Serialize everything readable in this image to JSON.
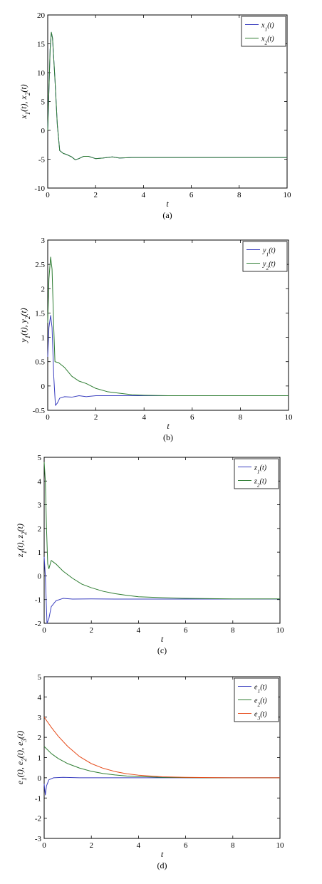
{
  "chart_data": [
    {
      "type": "line",
      "caption": "(a)",
      "xlabel": "t",
      "ylabel": "x1(t), x2(t)",
      "xlim": [
        0,
        10
      ],
      "ylim": [
        -10,
        20
      ],
      "xticks": [
        "0",
        "2",
        "4",
        "6",
        "8",
        "10"
      ],
      "yticks": [
        "-10",
        "-5",
        "0",
        "5",
        "10",
        "15",
        "20"
      ],
      "legend_position": "top-right",
      "series": [
        {
          "name": "x1(t)",
          "name_main": "x",
          "name_sub": "1",
          "name_tail": "(t)",
          "color": "#3a3fbf",
          "points": [
            [
              0,
              0
            ],
            [
              0.05,
              7
            ],
            [
              0.1,
              14
            ],
            [
              0.15,
              17
            ],
            [
              0.2,
              16
            ],
            [
              0.3,
              9
            ],
            [
              0.4,
              1
            ],
            [
              0.5,
              -3.5
            ],
            [
              0.65,
              -4
            ],
            [
              0.8,
              -4.2
            ],
            [
              1.0,
              -4.6
            ],
            [
              1.15,
              -5.1
            ],
            [
              1.3,
              -4.9
            ],
            [
              1.5,
              -4.5
            ],
            [
              1.7,
              -4.5
            ],
            [
              2.0,
              -4.9
            ],
            [
              2.3,
              -4.8
            ],
            [
              2.7,
              -4.6
            ],
            [
              3.0,
              -4.8
            ],
            [
              3.5,
              -4.7
            ],
            [
              4,
              -4.7
            ],
            [
              5,
              -4.7
            ],
            [
              6,
              -4.7
            ],
            [
              7,
              -4.7
            ],
            [
              8,
              -4.7
            ],
            [
              9,
              -4.7
            ],
            [
              10,
              -4.7
            ]
          ]
        },
        {
          "name": "x2(t)",
          "name_main": "x",
          "name_sub": "2",
          "name_tail": "(t)",
          "color": "#2e7d32",
          "points": [
            [
              0,
              0
            ],
            [
              0.05,
              7
            ],
            [
              0.1,
              14
            ],
            [
              0.15,
              17
            ],
            [
              0.2,
              16
            ],
            [
              0.3,
              9
            ],
            [
              0.4,
              1
            ],
            [
              0.5,
              -3.5
            ],
            [
              0.65,
              -4
            ],
            [
              0.8,
              -4.2
            ],
            [
              1.0,
              -4.6
            ],
            [
              1.15,
              -5.1
            ],
            [
              1.3,
              -4.9
            ],
            [
              1.5,
              -4.5
            ],
            [
              1.7,
              -4.5
            ],
            [
              2.0,
              -4.9
            ],
            [
              2.3,
              -4.8
            ],
            [
              2.7,
              -4.6
            ],
            [
              3.0,
              -4.8
            ],
            [
              3.5,
              -4.7
            ],
            [
              4,
              -4.7
            ],
            [
              5,
              -4.7
            ],
            [
              6,
              -4.7
            ],
            [
              7,
              -4.7
            ],
            [
              8,
              -4.7
            ],
            [
              9,
              -4.7
            ],
            [
              10,
              -4.7
            ]
          ]
        }
      ]
    },
    {
      "type": "line",
      "caption": "(b)",
      "xlabel": "t",
      "ylabel": "y1(t), y2(t)",
      "xlim": [
        0,
        10
      ],
      "ylim": [
        -0.5,
        3
      ],
      "xticks": [
        "0",
        "2",
        "4",
        "6",
        "8",
        "10"
      ],
      "yticks": [
        "-0.5",
        "0",
        "0.5",
        "1",
        "1.5",
        "2",
        "2.5",
        "3"
      ],
      "legend_position": "top-right",
      "series": [
        {
          "name": "y1(t)",
          "name_main": "y",
          "name_sub": "1",
          "name_tail": "(t)",
          "color": "#3a3fbf",
          "points": [
            [
              0,
              0.6
            ],
            [
              0.05,
              1.2
            ],
            [
              0.12,
              1.45
            ],
            [
              0.18,
              1.2
            ],
            [
              0.25,
              0.2
            ],
            [
              0.32,
              -0.4
            ],
            [
              0.4,
              -0.35
            ],
            [
              0.5,
              -0.25
            ],
            [
              0.7,
              -0.22
            ],
            [
              1.0,
              -0.23
            ],
            [
              1.3,
              -0.2
            ],
            [
              1.6,
              -0.22
            ],
            [
              2.0,
              -0.2
            ],
            [
              3,
              -0.2
            ],
            [
              4,
              -0.2
            ],
            [
              5,
              -0.2
            ],
            [
              6,
              -0.2
            ],
            [
              7,
              -0.2
            ],
            [
              8,
              -0.2
            ],
            [
              9,
              -0.2
            ],
            [
              10,
              -0.2
            ]
          ]
        },
        {
          "name": "y2(t)",
          "name_main": "y",
          "name_sub": "2",
          "name_tail": "(t)",
          "color": "#2e7d32",
          "points": [
            [
              0,
              1.3
            ],
            [
              0.05,
              2.2
            ],
            [
              0.12,
              2.65
            ],
            [
              0.18,
              2.4
            ],
            [
              0.25,
              1.2
            ],
            [
              0.3,
              0.5
            ],
            [
              0.45,
              0.48
            ],
            [
              0.7,
              0.38
            ],
            [
              1.0,
              0.2
            ],
            [
              1.3,
              0.1
            ],
            [
              1.6,
              0.05
            ],
            [
              2.0,
              -0.05
            ],
            [
              2.5,
              -0.12
            ],
            [
              3.0,
              -0.15
            ],
            [
              3.5,
              -0.18
            ],
            [
              4,
              -0.19
            ],
            [
              5,
              -0.2
            ],
            [
              6,
              -0.2
            ],
            [
              7,
              -0.2
            ],
            [
              8,
              -0.2
            ],
            [
              9,
              -0.2
            ],
            [
              10,
              -0.2
            ]
          ]
        }
      ]
    },
    {
      "type": "line",
      "caption": "(c)",
      "xlabel": "t",
      "ylabel": "z1(t), z2(t)",
      "xlim": [
        0,
        10
      ],
      "ylim": [
        -2,
        5
      ],
      "xticks": [
        "0",
        "2",
        "4",
        "6",
        "8",
        "10"
      ],
      "yticks": [
        "-2",
        "-1",
        "0",
        "1",
        "2",
        "3",
        "4",
        "5"
      ],
      "legend_position": "top-right",
      "series": [
        {
          "name": "z1(t)",
          "name_main": "z",
          "name_sub": "1",
          "name_tail": "(t)",
          "color": "#3a3fbf",
          "points": [
            [
              0,
              0.8
            ],
            [
              0.05,
              0
            ],
            [
              0.12,
              -2
            ],
            [
              0.2,
              -1.8
            ],
            [
              0.3,
              -1.3
            ],
            [
              0.5,
              -1.05
            ],
            [
              0.8,
              -0.95
            ],
            [
              1.2,
              -0.98
            ],
            [
              2,
              -0.97
            ],
            [
              3,
              -0.98
            ],
            [
              4,
              -0.98
            ],
            [
              5,
              -0.98
            ],
            [
              6,
              -0.98
            ],
            [
              7,
              -0.98
            ],
            [
              8,
              -0.98
            ],
            [
              9,
              -0.98
            ],
            [
              10,
              -0.98
            ]
          ]
        },
        {
          "name": "z2(t)",
          "name_main": "z",
          "name_sub": "2",
          "name_tail": "(t)",
          "color": "#2e7d32",
          "points": [
            [
              0,
              4.8
            ],
            [
              0.05,
              4
            ],
            [
              0.1,
              2
            ],
            [
              0.15,
              0.5
            ],
            [
              0.2,
              0.3
            ],
            [
              0.3,
              0.65
            ],
            [
              0.5,
              0.5
            ],
            [
              0.8,
              0.2
            ],
            [
              1.2,
              -0.1
            ],
            [
              1.6,
              -0.35
            ],
            [
              2,
              -0.5
            ],
            [
              2.5,
              -0.65
            ],
            [
              3,
              -0.75
            ],
            [
              3.5,
              -0.82
            ],
            [
              4,
              -0.88
            ],
            [
              5,
              -0.92
            ],
            [
              6,
              -0.95
            ],
            [
              7,
              -0.96
            ],
            [
              8,
              -0.97
            ],
            [
              9,
              -0.97
            ],
            [
              10,
              -0.97
            ]
          ]
        }
      ]
    },
    {
      "type": "line",
      "caption": "(d)",
      "xlabel": "t",
      "ylabel": "e1(t), e2(t), e3(t)",
      "xlim": [
        0,
        10
      ],
      "ylim": [
        -3,
        5
      ],
      "xticks": [
        "0",
        "2",
        "4",
        "6",
        "8",
        "10"
      ],
      "yticks": [
        "-3",
        "-2",
        "-1",
        "0",
        "1",
        "2",
        "3",
        "4",
        "5"
      ],
      "legend_position": "top-right",
      "series": [
        {
          "name": "e1(t)",
          "name_main": "e",
          "name_sub": "1",
          "name_tail": "(t)",
          "color": "#3a3fbf",
          "points": [
            [
              0,
              -0.3
            ],
            [
              0.05,
              -0.85
            ],
            [
              0.1,
              -0.4
            ],
            [
              0.2,
              -0.1
            ],
            [
              0.4,
              0
            ],
            [
              0.8,
              0.02
            ],
            [
              1.5,
              0
            ],
            [
              3,
              0
            ],
            [
              5,
              0
            ],
            [
              7,
              0
            ],
            [
              10,
              0
            ]
          ]
        },
        {
          "name": "e2(t)",
          "name_main": "e",
          "name_sub": "2",
          "name_tail": "(t)",
          "color": "#2e7d32",
          "points": [
            [
              0,
              1.55
            ],
            [
              0.3,
              1.2
            ],
            [
              0.6,
              0.95
            ],
            [
              1.0,
              0.7
            ],
            [
              1.5,
              0.48
            ],
            [
              2,
              0.32
            ],
            [
              2.5,
              0.21
            ],
            [
              3,
              0.14
            ],
            [
              3.5,
              0.09
            ],
            [
              4,
              0.06
            ],
            [
              5,
              0.02
            ],
            [
              6,
              0.01
            ],
            [
              7,
              0
            ],
            [
              8,
              0
            ],
            [
              9,
              0
            ],
            [
              10,
              0
            ]
          ]
        },
        {
          "name": "e3(t)",
          "name_main": "e",
          "name_sub": "3",
          "name_tail": "(t)",
          "color": "#e64a19",
          "points": [
            [
              0,
              3.0
            ],
            [
              0.3,
              2.5
            ],
            [
              0.6,
              2.05
            ],
            [
              1.0,
              1.55
            ],
            [
              1.5,
              1.05
            ],
            [
              2,
              0.7
            ],
            [
              2.5,
              0.47
            ],
            [
              3,
              0.31
            ],
            [
              3.5,
              0.2
            ],
            [
              4,
              0.13
            ],
            [
              5,
              0.05
            ],
            [
              6,
              0.02
            ],
            [
              7,
              0.01
            ],
            [
              8,
              0
            ],
            [
              9,
              0
            ],
            [
              10,
              0
            ]
          ]
        }
      ]
    }
  ]
}
